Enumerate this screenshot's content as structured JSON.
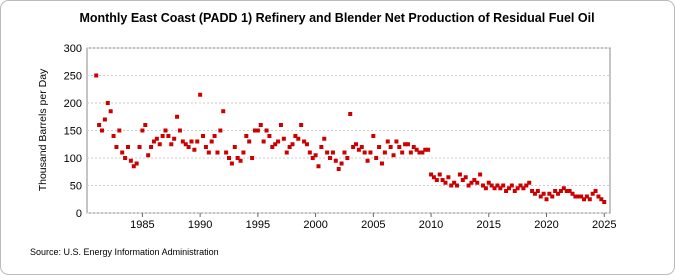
{
  "chart_data": {
    "type": "scatter",
    "title": "Monthly East Coast (PADD 1) Refinery and Blender Net Production of Residual Fuel Oil",
    "y_label": "Thousand Barrels per Day",
    "source": "Source: U.S. Energy Information Administration",
    "xlim": [
      1980.2,
      2025.5
    ],
    "ylim": [
      0,
      300
    ],
    "xticks": [
      1985,
      1990,
      1995,
      2000,
      2005,
      2010,
      2015,
      2020,
      2025
    ],
    "yticks": [
      0,
      50,
      100,
      150,
      200,
      250,
      300
    ],
    "grid": true,
    "series": [
      {
        "name": "Residual Fuel Oil",
        "color": "#cc0000",
        "x": [
          1981,
          1981.25,
          1981.5,
          1981.75,
          1982,
          1982.25,
          1982.5,
          1982.75,
          1983,
          1983.25,
          1983.5,
          1983.75,
          1984,
          1984.25,
          1984.5,
          1984.75,
          1985,
          1985.25,
          1985.5,
          1985.75,
          1986,
          1986.25,
          1986.5,
          1986.75,
          1987,
          1987.25,
          1987.5,
          1987.75,
          1988,
          1988.25,
          1988.5,
          1988.75,
          1989,
          1989.25,
          1989.5,
          1989.75,
          1990,
          1990.25,
          1990.5,
          1990.75,
          1991,
          1991.25,
          1991.5,
          1991.75,
          1992,
          1992.25,
          1992.5,
          1992.75,
          1993,
          1993.25,
          1993.5,
          1993.75,
          1994,
          1994.25,
          1994.5,
          1994.75,
          1995,
          1995.25,
          1995.5,
          1995.75,
          1996,
          1996.25,
          1996.5,
          1996.75,
          1997,
          1997.25,
          1997.5,
          1997.75,
          1998,
          1998.25,
          1998.5,
          1998.75,
          1999,
          1999.25,
          1999.5,
          1999.75,
          2000,
          2000.25,
          2000.5,
          2000.75,
          2001,
          2001.25,
          2001.5,
          2001.75,
          2002,
          2002.25,
          2002.5,
          2002.75,
          2003,
          2003.25,
          2003.5,
          2003.75,
          2004,
          2004.25,
          2004.5,
          2004.75,
          2005,
          2005.25,
          2005.5,
          2005.75,
          2006,
          2006.25,
          2006.5,
          2006.75,
          2007,
          2007.25,
          2007.5,
          2007.75,
          2008,
          2008.25,
          2008.5,
          2008.75,
          2009,
          2009.25,
          2009.5,
          2009.75,
          2010,
          2010.25,
          2010.5,
          2010.75,
          2011,
          2011.25,
          2011.5,
          2011.75,
          2012,
          2012.25,
          2012.5,
          2012.75,
          2013,
          2013.25,
          2013.5,
          2013.75,
          2014,
          2014.25,
          2014.5,
          2014.75,
          2015,
          2015.25,
          2015.5,
          2015.75,
          2016,
          2016.25,
          2016.5,
          2016.75,
          2017,
          2017.25,
          2017.5,
          2017.75,
          2018,
          2018.25,
          2018.5,
          2018.75,
          2019,
          2019.25,
          2019.5,
          2019.75,
          2020,
          2020.25,
          2020.5,
          2020.75,
          2021,
          2021.25,
          2021.5,
          2021.75,
          2022,
          2022.25,
          2022.5,
          2022.75,
          2023,
          2023.25,
          2023.5,
          2023.75,
          2024,
          2024.25,
          2024.5,
          2024.75,
          2025
        ],
        "values": [
          250,
          160,
          150,
          170,
          200,
          185,
          140,
          120,
          150,
          110,
          100,
          120,
          95,
          85,
          90,
          120,
          150,
          160,
          105,
          120,
          130,
          135,
          125,
          140,
          150,
          140,
          125,
          135,
          175,
          150,
          130,
          125,
          120,
          130,
          115,
          130,
          215,
          140,
          120,
          110,
          130,
          140,
          110,
          150,
          185,
          110,
          100,
          90,
          120,
          100,
          95,
          110,
          140,
          130,
          100,
          150,
          150,
          160,
          130,
          150,
          140,
          120,
          125,
          130,
          160,
          135,
          110,
          120,
          125,
          140,
          135,
          160,
          130,
          125,
          110,
          100,
          105,
          85,
          120,
          135,
          110,
          100,
          110,
          95,
          80,
          90,
          110,
          100,
          180,
          120,
          125,
          115,
          120,
          110,
          95,
          110,
          140,
          100,
          120,
          90,
          110,
          130,
          120,
          105,
          130,
          120,
          110,
          125,
          125,
          110,
          120,
          115,
          110,
          110,
          115,
          115,
          70,
          65,
          60,
          70,
          60,
          55,
          65,
          50,
          55,
          50,
          70,
          60,
          65,
          50,
          55,
          60,
          55,
          70,
          50,
          45,
          55,
          50,
          45,
          50,
          45,
          50,
          40,
          45,
          50,
          40,
          45,
          50,
          45,
          50,
          55,
          40,
          35,
          40,
          30,
          35,
          25,
          35,
          30,
          40,
          35,
          40,
          45,
          40,
          40,
          35,
          30,
          30,
          30,
          25,
          30,
          25,
          35,
          40,
          30,
          25,
          20
        ]
      }
    ]
  }
}
